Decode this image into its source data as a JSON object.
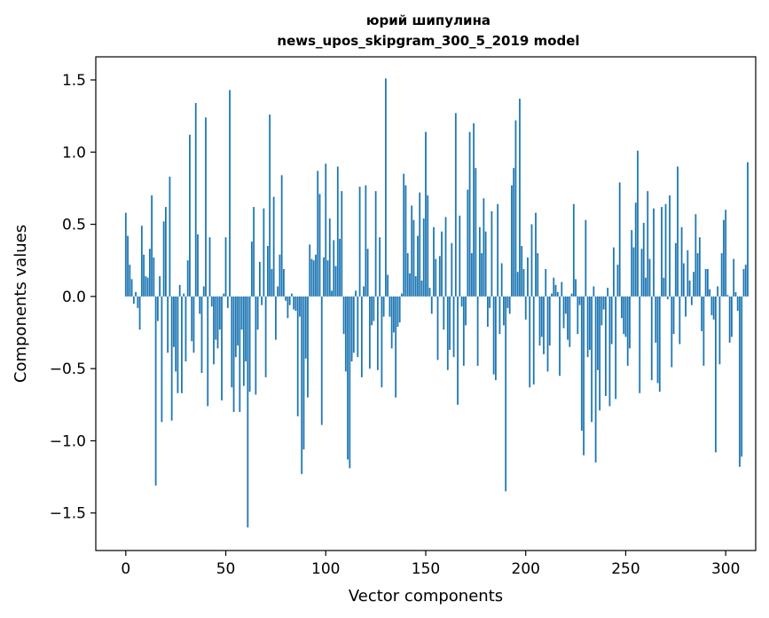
{
  "chart_data": {
    "type": "bar",
    "title": "юрий шипулина",
    "subtitle": "news_upos_skipgram_300_5_2019 model",
    "xlabel": "Vector components",
    "ylabel": "Components values",
    "xlim": [
      -15,
      315
    ],
    "ylim": [
      -1.76,
      1.66
    ],
    "xticks": [
      0,
      50,
      100,
      150,
      200,
      250,
      300
    ],
    "yticks": [
      1.5,
      1.0,
      0.5,
      0.0,
      -0.5,
      -1.0,
      -1.5
    ],
    "ytick_labels": [
      "1.5",
      "1.0",
      "0.5",
      "0.0",
      "−0.5",
      "−1.0",
      "−1.5"
    ],
    "grid": false,
    "bar_color": "#1f77b4",
    "x_start": 0,
    "values": [
      0.58,
      0.42,
      0.22,
      0.12,
      -0.05,
      0.03,
      -0.08,
      -0.23,
      0.49,
      0.29,
      0.14,
      0.13,
      0.33,
      0.7,
      0.27,
      -1.31,
      -0.17,
      0.14,
      -0.87,
      0.52,
      0.62,
      -0.39,
      0.83,
      -0.86,
      -0.35,
      -0.52,
      -0.67,
      0.08,
      -0.67,
      0.02,
      -0.45,
      0.25,
      1.12,
      -0.31,
      -0.39,
      1.34,
      0.43,
      -0.12,
      -0.53,
      0.07,
      1.24,
      -0.76,
      0.41,
      -0.07,
      -0.47,
      -0.3,
      -0.36,
      -0.23,
      -0.72,
      0.02,
      0.41,
      -0.08,
      1.43,
      -0.63,
      -0.8,
      -0.42,
      -0.34,
      -0.8,
      -0.23,
      -0.62,
      -0.45,
      -1.6,
      -0.66,
      0.38,
      0.62,
      -0.68,
      -0.23,
      0.24,
      -0.06,
      0.61,
      -0.56,
      0.35,
      1.26,
      0.19,
      0.69,
      -0.3,
      0.07,
      0.29,
      0.84,
      0.19,
      -0.03,
      -0.15,
      -0.06,
      0.02,
      -0.09,
      -0.1,
      -0.83,
      -0.14,
      -1.23,
      -1.06,
      -0.43,
      -0.7,
      0.36,
      0.26,
      0.25,
      0.29,
      0.87,
      0.71,
      -0.89,
      0.27,
      0.92,
      0.25,
      0.54,
      0.04,
      0.39,
      0.21,
      0.9,
      0.4,
      0.73,
      -0.26,
      -0.52,
      -1.13,
      -1.19,
      -0.45,
      -0.39,
      0.04,
      -0.42,
      0.76,
      -0.56,
      0.07,
      0.77,
      0.33,
      -0.5,
      -0.2,
      -0.17,
      0.73,
      -0.51,
      0.41,
      -0.63,
      -0.14,
      1.51,
      0.15,
      -0.14,
      -0.36,
      -0.25,
      -0.7,
      -0.21,
      -0.18,
      0.02,
      0.85,
      0.77,
      0.3,
      0.16,
      0.63,
      0.53,
      0.14,
      0.42,
      0.72,
      0.11,
      0.54,
      1.14,
      0.7,
      0.06,
      -0.12,
      0.48,
      0.26,
      -0.44,
      0.28,
      0.45,
      -0.23,
      0.55,
      -0.51,
      -0.37,
      0.37,
      -0.42,
      1.27,
      -0.75,
      0.56,
      -0.07,
      -0.48,
      -0.2,
      0.74,
      1.14,
      0.3,
      1.2,
      0.89,
      -0.48,
      0.48,
      0.3,
      0.68,
      0.45,
      -0.21,
      -0.08,
      0.59,
      -0.54,
      -0.58,
      0.64,
      -0.26,
      0.23,
      -0.2,
      -1.35,
      -0.08,
      -0.12,
      0.77,
      0.89,
      1.22,
      0.17,
      1.37,
      0.35,
      0.19,
      -0.16,
      0.27,
      -0.63,
      0.5,
      -0.61,
      0.58,
      0.3,
      -0.34,
      -0.28,
      -0.4,
      0.19,
      -0.52,
      -0.34,
      0.02,
      0.13,
      0.08,
      0.03,
      -0.55,
      0.1,
      -0.22,
      -0.12,
      -0.3,
      -0.35,
      0.02,
      0.64,
      0.12,
      -0.26,
      -0.06,
      -0.93,
      -1.1,
      0.53,
      -0.42,
      -0.37,
      -0.87,
      0.07,
      -1.15,
      -0.51,
      -0.79,
      -0.2,
      -0.09,
      -0.69,
      0.06,
      -0.76,
      -0.33,
      0.34,
      -0.71,
      0.22,
      0.79,
      -0.15,
      -0.26,
      -0.28,
      -0.48,
      -0.36,
      0.46,
      0.34,
      0.65,
      1.01,
      -0.67,
      0.33,
      0.51,
      0.13,
      0.73,
      0.26,
      -0.58,
      0.61,
      -0.32,
      -0.6,
      -0.66,
      0.62,
      0.13,
      0.64,
      -0.02,
      0.7,
      -0.49,
      -0.26,
      0.37,
      0.9,
      -0.33,
      0.48,
      0.23,
      -0.14,
      0.32,
      0.11,
      -0.06,
      0.17,
      0.57,
      0.3,
      0.41,
      -0.24,
      -0.48,
      0.19,
      0.19,
      0.05,
      -0.13,
      -0.16,
      -1.08,
      0.07,
      -0.47,
      0.3,
      0.53,
      0.6,
      0.01,
      -0.32,
      -0.28,
      0.26,
      0.03,
      -0.1,
      -1.18,
      -1.11,
      0.19,
      0.22,
      0.93
    ]
  }
}
